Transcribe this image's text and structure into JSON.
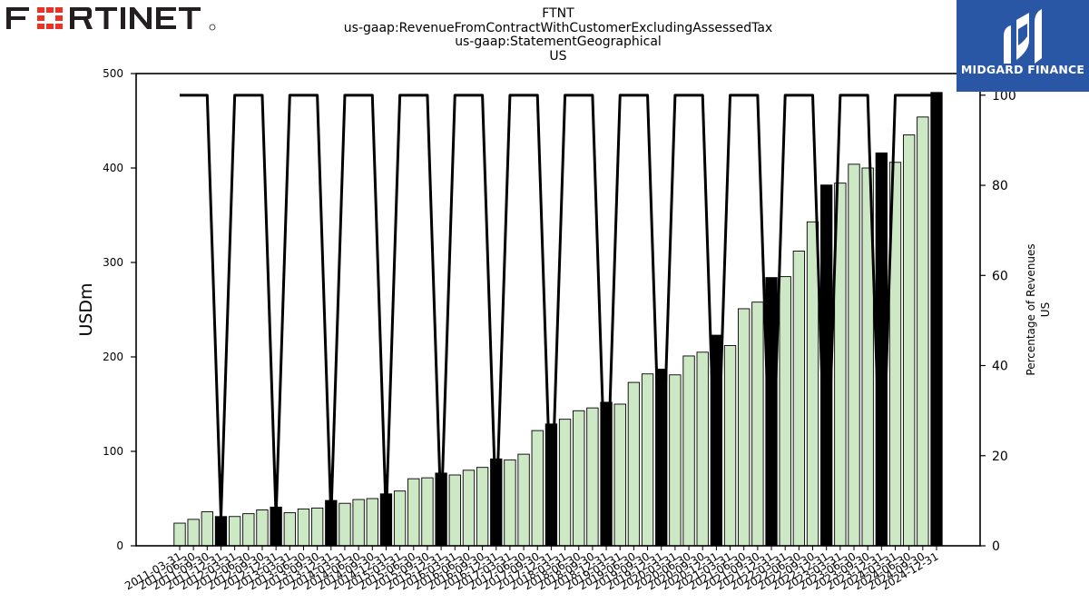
{
  "header": {
    "company_logo_text": "FORTINET",
    "title_lines": [
      "FTNT",
      "us-gaap:RevenueFromContractWithCustomerExcludingAssessedTax",
      "us-gaap:StatementGeographical",
      "US"
    ]
  },
  "badge": {
    "label": "MIDGARD FINANCE"
  },
  "colors": {
    "bar_quarter": "#cce8c4",
    "bar_annual": "#000000",
    "line": "#000000",
    "logo_red": "#ee3124",
    "logo_dark": "#231f20",
    "badge_bg": "#2a56a6"
  },
  "chart_data": {
    "type": "bar",
    "ylabel": "USDm",
    "ylabel_right": [
      "Percentage of Revenues",
      "US"
    ],
    "ylim": [
      0,
      500
    ],
    "yticks": [
      0,
      100,
      200,
      300,
      400,
      500
    ],
    "ylim_right": [
      0,
      104.8
    ],
    "yticks_right": [
      0,
      20,
      40,
      60,
      80,
      100
    ],
    "categories": [
      "2011-03-31",
      "2011-06-30",
      "2011-09-30",
      "2011-12-31",
      "2012-03-31",
      "2012-06-30",
      "2012-09-30",
      "2012-12-31",
      "2013-03-31",
      "2013-06-30",
      "2013-09-30",
      "2013-12-31",
      "2014-03-31",
      "2014-06-30",
      "2014-09-30",
      "2014-12-31",
      "2015-03-31",
      "2015-06-30",
      "2015-09-30",
      "2015-12-31",
      "2016-03-31",
      "2016-06-30",
      "2016-09-30",
      "2016-12-31",
      "2017-03-31",
      "2017-06-30",
      "2017-09-30",
      "2017-12-31",
      "2018-03-31",
      "2018-06-30",
      "2018-09-30",
      "2018-12-31",
      "2019-03-31",
      "2019-06-30",
      "2019-09-30",
      "2019-12-31",
      "2020-03-31",
      "2020-06-30",
      "2020-09-30",
      "2020-12-31",
      "2021-03-31",
      "2021-06-30",
      "2021-09-30",
      "2021-12-31",
      "2022-03-31",
      "2022-06-30",
      "2022-09-30",
      "2022-12-31",
      "2023-03-31",
      "2023-06-30",
      "2023-09-30",
      "2023-12-31",
      "2024-03-31",
      "2024-06-30",
      "2024-09-30",
      "2024-12-31"
    ],
    "series": [
      {
        "kind": "bar",
        "values": [
          24,
          28,
          36,
          31,
          31,
          34,
          38,
          41,
          35,
          39,
          40,
          48,
          45,
          49,
          50,
          55,
          58,
          71,
          72,
          77,
          75,
          80,
          83,
          92,
          91,
          97,
          122,
          129,
          134,
          143,
          146,
          152,
          150,
          173,
          182,
          187,
          181,
          201,
          205,
          223,
          212,
          251,
          258,
          284,
          285,
          312,
          343,
          382,
          384,
          404,
          400,
          416,
          406,
          435,
          454,
          480
        ]
      },
      {
        "kind": "line",
        "axis": "right",
        "values": [
          100,
          100,
          100,
          6.3,
          100,
          100,
          100,
          6.3,
          100,
          100,
          100,
          6.3,
          100,
          100,
          100,
          6.3,
          100,
          100,
          100,
          6.3,
          100,
          100,
          100,
          6.3,
          100,
          100,
          100,
          6.3,
          100,
          100,
          100,
          6.3,
          100,
          100,
          100,
          6.3,
          100,
          100,
          100,
          6.3,
          100,
          100,
          100,
          6.3,
          100,
          100,
          100,
          6.3,
          100,
          100,
          100,
          6.3,
          100,
          100,
          100,
          100
        ]
      }
    ]
  }
}
